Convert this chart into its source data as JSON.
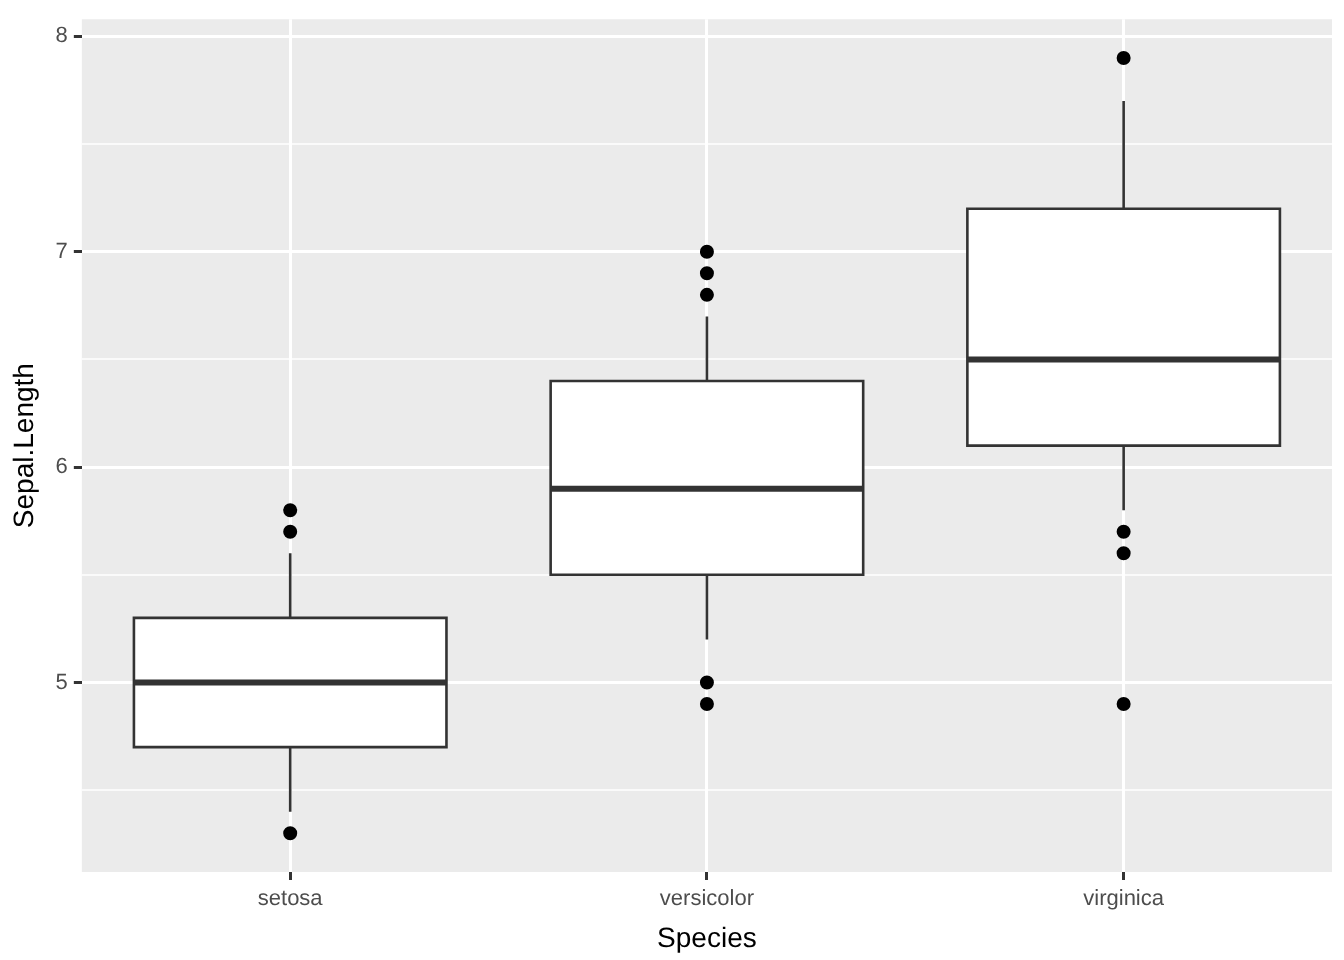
{
  "chart_data": {
    "type": "box",
    "xlabel": "Species",
    "ylabel": "Sepal.Length",
    "categories": [
      "setosa",
      "versicolor",
      "virginica"
    ],
    "boxes": [
      {
        "low": 4.4,
        "q1": 4.7,
        "median": 5.0,
        "q3": 5.3,
        "high": 5.6,
        "outliers": [
          5.8,
          5.7,
          4.3
        ]
      },
      {
        "low": 5.2,
        "q1": 5.5,
        "median": 5.9,
        "q3": 6.4,
        "high": 6.7,
        "outliers": [
          7.0,
          6.9,
          6.8,
          5.0,
          4.9
        ]
      },
      {
        "low": 5.8,
        "q1": 6.1,
        "median": 6.5,
        "q3": 7.2,
        "high": 7.7,
        "outliers": [
          7.9,
          5.7,
          5.6,
          4.9
        ]
      }
    ],
    "ylim": [
      4.12,
      8.08
    ],
    "yticks": [
      {
        "value": 4.5,
        "label": null
      },
      5,
      {
        "value": 5.5,
        "label": null
      },
      6,
      {
        "value": 6.5,
        "label": null
      },
      7,
      {
        "value": 7.5,
        "label": null
      },
      8
    ],
    "grid": true,
    "legend": false
  }
}
